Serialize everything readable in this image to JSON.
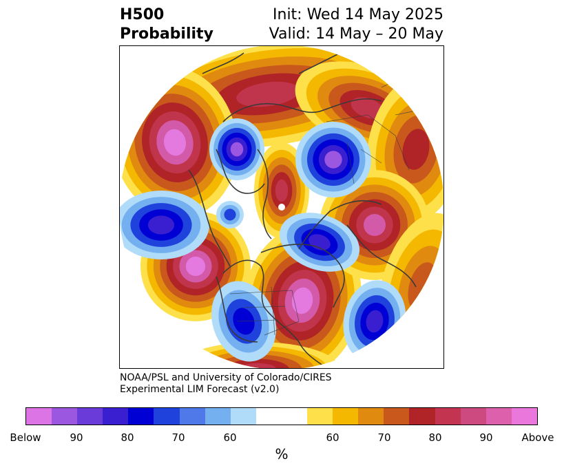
{
  "title": {
    "left_line1": "H500",
    "left_line2": "Probability",
    "right_line1": "Init: Wed 14 May 2025",
    "right_line2": "Valid: 14 May – 20 May"
  },
  "credit": {
    "line1": "NOAA/PSL and University of Colorado/CIRES",
    "line2": "Experimental LIM Forecast (v2.0)"
  },
  "colorbar": {
    "unit": "%",
    "colors": [
      "#dd74e6",
      "#9b57e0",
      "#6a3bd8",
      "#3a1fd0",
      "#0000d4",
      "#2042dc",
      "#4f78e8",
      "#74b0f0",
      "#b0dcfa",
      "#ffffff",
      "#ffffff",
      "#fde04a",
      "#f5b800",
      "#e08a10",
      "#c8581c",
      "#b02428",
      "#c23450",
      "#cc4a80",
      "#dd60ac",
      "#ea78dc"
    ],
    "tick_labels": [
      "Below",
      "90",
      "80",
      "70",
      "60",
      "60",
      "70",
      "80",
      "90",
      "Above"
    ]
  },
  "map": {
    "projection": "north-polar-stereographic",
    "field": "500 hPa height anomaly probability",
    "colors": {
      "pink": "#e47ae0",
      "magenta": "#d35aa8",
      "crimson": "#c0344c",
      "red": "#b02428",
      "rust": "#c8581c",
      "orange": "#e08a10",
      "gold": "#f5b800",
      "yellow": "#fde04a",
      "lightblue": "#b0dcfa",
      "skyblue": "#74b0f0",
      "blue": "#2042dc",
      "navy": "#0000d4",
      "indigo": "#3a1fd0",
      "violet": "#9b57e0"
    }
  }
}
